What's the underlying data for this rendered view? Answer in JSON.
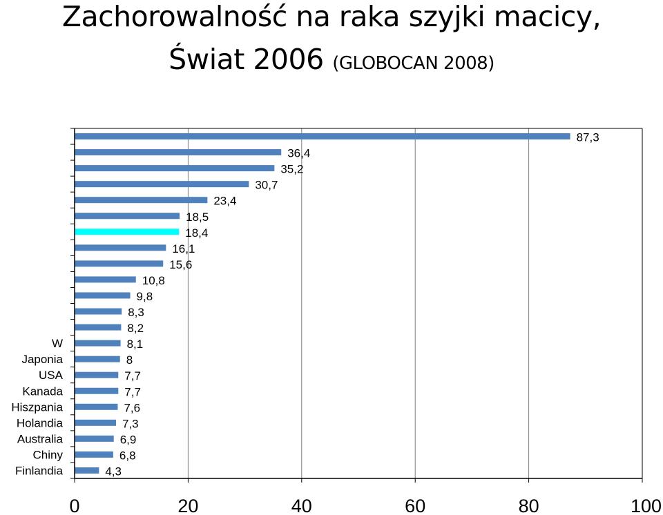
{
  "title": {
    "line1": "Zachorowalność na raka szyjki macicy,",
    "line2": "Świat 2006",
    "source": "(GLOBOCAN 2008)"
  },
  "chart_data": {
    "type": "bar",
    "orientation": "horizontal",
    "categories": [
      "",
      "",
      "",
      "",
      "",
      "",
      "",
      "",
      "",
      "",
      "",
      "",
      "",
      "W",
      "Japonia",
      "USA",
      "Kanada",
      "Hiszpania",
      "Holandia",
      "Australia",
      "Chiny",
      "Finlandia"
    ],
    "values": [
      87.3,
      36.4,
      35.2,
      30.7,
      23.4,
      18.5,
      18.4,
      16.1,
      15.6,
      10.8,
      9.8,
      8.3,
      8.2,
      8.1,
      8,
      7.7,
      7.7,
      7.6,
      7.3,
      6.9,
      6.8,
      4.3
    ],
    "value_labels": [
      "87,3",
      "36,4",
      "35,2",
      "30,7",
      "23,4",
      "18,5",
      "18,4",
      "16,1",
      "15,6",
      "10,8",
      "9,8",
      "8,3",
      "8,2",
      "8,1",
      "8",
      "7,7",
      "7,7",
      "7,6",
      "7,3",
      "6,9",
      "6,8",
      "4,3"
    ],
    "highlight_index": 6,
    "xlim": [
      0,
      100
    ],
    "xticks": [
      0,
      20,
      40,
      60,
      80,
      100
    ],
    "grid": "vertical",
    "colors": {
      "bar": "#4f81bd",
      "highlight": "#00ffff",
      "grid": "#7f7f7f",
      "axis": "#000000"
    }
  }
}
